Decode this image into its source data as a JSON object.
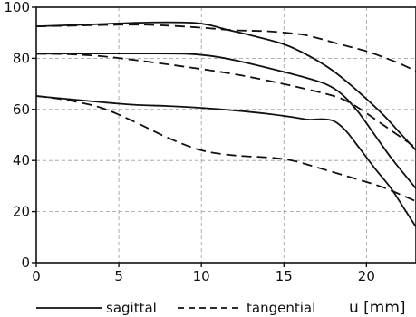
{
  "chart_data": {
    "type": "line",
    "title": "",
    "xlabel": "u [mm]",
    "ylabel": "",
    "xlim": [
      0,
      23
    ],
    "ylim": [
      0,
      100
    ],
    "x_ticks": [
      0,
      5,
      10,
      15,
      20
    ],
    "y_ticks": [
      0,
      20,
      40,
      60,
      80,
      100
    ],
    "grid": true,
    "legend": {
      "placement": "bottom",
      "entries": [
        {
          "name": "sagittal",
          "style": "solid"
        },
        {
          "name": "tangential",
          "style": "dashed"
        }
      ]
    },
    "series": [
      {
        "name": "sagittal",
        "style": "solid",
        "points": [
          [
            0,
            92.5
          ],
          [
            3,
            93.2
          ],
          [
            6,
            93.9
          ],
          [
            8,
            94.1
          ],
          [
            9.5,
            93.9
          ],
          [
            10.5,
            93
          ],
          [
            11.5,
            91.3
          ],
          [
            13,
            89
          ],
          [
            15,
            85.5
          ],
          [
            16.5,
            81
          ],
          [
            18,
            75
          ],
          [
            19.5,
            67
          ],
          [
            21,
            58
          ],
          [
            22,
            51
          ],
          [
            23,
            44
          ]
        ]
      },
      {
        "name": "sagittal",
        "style": "solid",
        "points": [
          [
            0,
            81.8
          ],
          [
            3,
            81.9
          ],
          [
            6,
            81.9
          ],
          [
            9,
            81.8
          ],
          [
            10.5,
            81
          ],
          [
            12,
            79.3
          ],
          [
            14,
            76.3
          ],
          [
            16,
            73
          ],
          [
            17.5,
            70
          ],
          [
            18.5,
            66
          ],
          [
            19.5,
            59
          ],
          [
            20.5,
            50
          ],
          [
            21.5,
            41
          ],
          [
            22.5,
            33
          ],
          [
            23,
            29
          ]
        ]
      },
      {
        "name": "sagittal",
        "style": "solid",
        "points": [
          [
            0,
            65.2
          ],
          [
            2,
            64
          ],
          [
            4,
            62.8
          ],
          [
            6,
            61.8
          ],
          [
            8,
            61.3
          ],
          [
            10,
            60.6
          ],
          [
            12,
            59.6
          ],
          [
            14,
            58.3
          ],
          [
            15.5,
            57
          ],
          [
            16.5,
            56
          ],
          [
            17.3,
            56.2
          ],
          [
            18,
            55.5
          ],
          [
            18.7,
            52
          ],
          [
            19.5,
            45.5
          ],
          [
            20.5,
            37
          ],
          [
            21.5,
            29
          ],
          [
            22.3,
            21
          ],
          [
            23,
            14
          ]
        ]
      },
      {
        "name": "tangential",
        "style": "dashed",
        "points": [
          [
            0,
            92.5
          ],
          [
            3,
            92.9
          ],
          [
            6,
            93.2
          ],
          [
            8,
            92.8
          ],
          [
            10,
            92
          ],
          [
            12,
            91
          ],
          [
            14,
            90.6
          ],
          [
            16,
            89.4
          ],
          [
            17,
            88
          ],
          [
            18,
            86.2
          ],
          [
            19,
            84.5
          ],
          [
            20,
            82.8
          ],
          [
            21,
            80.5
          ],
          [
            22,
            78
          ],
          [
            23,
            75
          ]
        ]
      },
      {
        "name": "tangential",
        "style": "dashed",
        "points": [
          [
            0,
            81.8
          ],
          [
            2,
            81.6
          ],
          [
            4,
            80.8
          ],
          [
            6,
            79.3
          ],
          [
            8,
            77.6
          ],
          [
            10,
            75.8
          ],
          [
            12,
            73.8
          ],
          [
            14,
            71.3
          ],
          [
            16,
            68.5
          ],
          [
            18,
            65.3
          ],
          [
            19,
            62.6
          ],
          [
            20,
            58.5
          ],
          [
            21,
            54
          ],
          [
            22,
            49.5
          ],
          [
            23,
            45
          ]
        ]
      },
      {
        "name": "tangential",
        "style": "dashed",
        "points": [
          [
            0,
            65.3
          ],
          [
            2,
            63.5
          ],
          [
            4,
            60.5
          ],
          [
            6,
            55
          ],
          [
            8,
            48.8
          ],
          [
            10,
            44
          ],
          [
            12,
            42
          ],
          [
            14,
            41.2
          ],
          [
            15.5,
            40
          ],
          [
            17,
            37.3
          ],
          [
            19,
            33.5
          ],
          [
            21,
            29.5
          ],
          [
            23,
            24
          ]
        ]
      }
    ]
  }
}
